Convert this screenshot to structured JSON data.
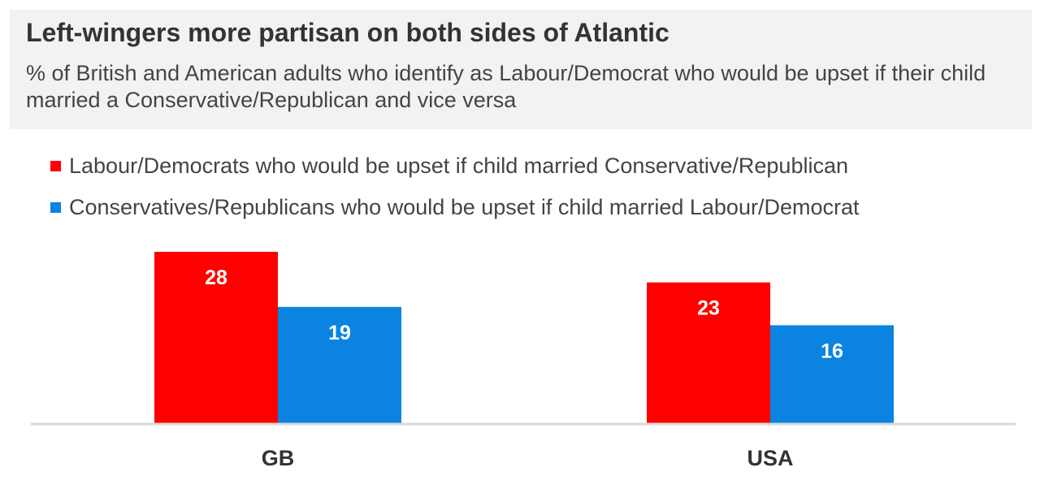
{
  "header": {
    "title": "Left-wingers more partisan on both sides of Atlantic",
    "subtitle": "% of British and American adults who identify as Labour/Democrat who would be upset if their child married a Conservative/Republican and vice versa"
  },
  "colors": {
    "series_left": "#ff0000",
    "series_right": "#0a84e0",
    "header_bg": "#f2f2f2",
    "baseline": "#d9d9d9"
  },
  "chart_data": {
    "type": "bar",
    "categories": [
      "GB",
      "USA"
    ],
    "series": [
      {
        "name": "Labour/Democrats who would be upset if child married Conservative/Republican",
        "values": [
          28,
          23
        ]
      },
      {
        "name": "Conservatives/Republicans who would be upset if child married Labour/Democrat",
        "values": [
          19,
          16
        ]
      }
    ],
    "ylim": [
      0,
      28
    ],
    "grid": false,
    "legend_position": "top-left"
  }
}
